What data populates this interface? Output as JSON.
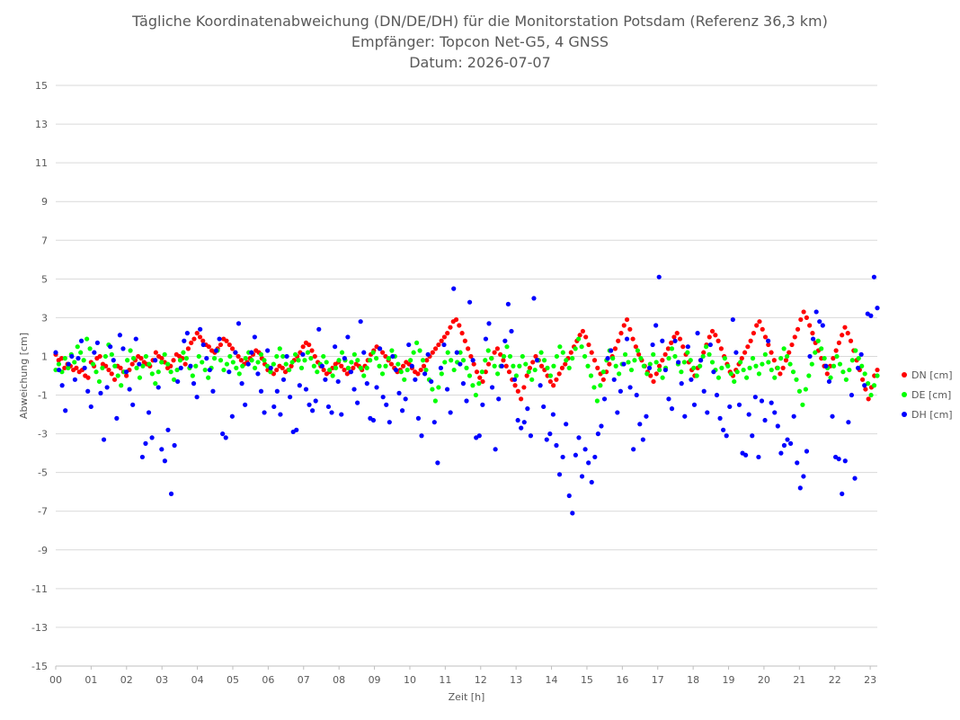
{
  "chart_data": {
    "type": "scatter",
    "title": "Tägliche Koordinatenabweichung (DN/DE/DH) für die Monitorstation Potsdam (Referenz 36,3 km)",
    "subtitle": "Empfänger: Topcon Net-G5, 4 GNSS",
    "date_line": "Datum: 2026-07-07",
    "xlabel": "Zeit [h]",
    "ylabel": "Abweichung [cm]",
    "xlim": [
      0,
      23.2
    ],
    "ylim": [
      -15,
      15
    ],
    "y_ticks": [
      15,
      13,
      11,
      9,
      7,
      5,
      3,
      1,
      -1,
      -3,
      -5,
      -7,
      -9,
      -11,
      -13,
      -15
    ],
    "x_tick_labels": [
      "00",
      "01",
      "02",
      "03",
      "04",
      "05",
      "06",
      "07",
      "08",
      "09",
      "10",
      "11",
      "12",
      "13",
      "14",
      "15",
      "16",
      "17",
      "18",
      "19",
      "20",
      "21",
      "22",
      "23"
    ],
    "grid": "horizontal",
    "legend_position": "right",
    "series": [
      {
        "name": "DN [cm]",
        "color": "#ff0000",
        "values": [
          1.1,
          0.8,
          0.9,
          0.4,
          0.6,
          0.5,
          0.3,
          0.4,
          0.2,
          0.3,
          0.0,
          -0.1,
          0.7,
          0.5,
          0.9,
          1.0,
          0.6,
          0.5,
          0.3,
          0.1,
          -0.2,
          0.5,
          0.4,
          0.2,
          0.0,
          0.3,
          0.6,
          0.8,
          1.0,
          0.9,
          0.7,
          0.6,
          0.5,
          0.8,
          1.2,
          1.0,
          0.9,
          0.7,
          0.4,
          0.5,
          0.8,
          1.1,
          1.0,
          0.9,
          0.6,
          1.4,
          1.7,
          1.9,
          2.2,
          2.0,
          1.8,
          1.6,
          1.5,
          1.3,
          1.2,
          1.4,
          1.6,
          1.9,
          1.8,
          1.6,
          1.4,
          1.2,
          1.0,
          0.8,
          0.6,
          0.7,
          0.9,
          1.1,
          1.3,
          1.2,
          0.9,
          0.6,
          0.3,
          0.2,
          0.1,
          0.3,
          0.5,
          0.4,
          0.2,
          0.3,
          0.5,
          0.8,
          1.0,
          1.2,
          1.5,
          1.7,
          1.6,
          1.3,
          1.0,
          0.7,
          0.5,
          0.3,
          0.1,
          0.2,
          0.4,
          0.6,
          0.7,
          0.5,
          0.3,
          0.1,
          0.2,
          0.4,
          0.6,
          0.5,
          0.3,
          0.5,
          0.8,
          1.1,
          1.3,
          1.5,
          1.4,
          1.2,
          1.0,
          0.8,
          0.6,
          0.4,
          0.2,
          0.3,
          0.5,
          0.7,
          0.6,
          0.4,
          0.2,
          0.1,
          0.3,
          0.5,
          0.8,
          1.0,
          1.2,
          1.4,
          1.6,
          1.8,
          2.0,
          2.2,
          2.5,
          2.8,
          2.9,
          2.6,
          2.2,
          1.8,
          1.4,
          1.0,
          0.6,
          0.2,
          -0.1,
          -0.3,
          0.2,
          0.6,
          0.9,
          1.2,
          1.4,
          1.1,
          0.8,
          0.5,
          0.2,
          -0.2,
          -0.5,
          -0.8,
          -1.2,
          -0.6,
          0.0,
          0.4,
          0.7,
          1.0,
          0.8,
          0.5,
          0.3,
          0.0,
          -0.3,
          -0.5,
          -0.2,
          0.1,
          0.4,
          0.6,
          0.9,
          1.2,
          1.5,
          1.8,
          2.1,
          2.3,
          2.0,
          1.6,
          1.2,
          0.8,
          0.4,
          0.1,
          -0.2,
          0.2,
          0.6,
          1.0,
          1.4,
          1.8,
          2.2,
          2.6,
          2.9,
          2.4,
          1.9,
          1.5,
          1.1,
          0.8,
          0.5,
          0.2,
          0.0,
          -0.3,
          0.1,
          0.5,
          0.8,
          1.1,
          1.4,
          1.7,
          2.0,
          2.2,
          1.9,
          1.5,
          1.1,
          0.7,
          0.3,
          0.0,
          0.4,
          0.8,
          1.2,
          1.6,
          2.0,
          2.3,
          2.1,
          1.8,
          1.4,
          1.0,
          0.6,
          0.2,
          0.0,
          0.3,
          0.6,
          0.9,
          1.2,
          1.5,
          1.8,
          2.2,
          2.6,
          2.8,
          2.4,
          2.0,
          1.6,
          1.2,
          0.8,
          0.4,
          0.1,
          0.4,
          0.8,
          1.2,
          1.6,
          2.0,
          2.4,
          2.9,
          3.3,
          3.0,
          2.6,
          2.2,
          1.7,
          1.3,
          0.9,
          0.5,
          0.1,
          0.5,
          0.9,
          1.3,
          1.7,
          2.1,
          2.5,
          2.2,
          1.8,
          1.3,
          0.8,
          0.3,
          -0.2,
          -0.7,
          -1.2,
          -0.6,
          0.0,
          0.3
        ]
      },
      {
        "name": "DE [cm]",
        "color": "#00ff00",
        "values": [
          0.3,
          0.6,
          0.2,
          0.9,
          0.4,
          1.1,
          0.7,
          1.5,
          1.2,
          0.8,
          1.9,
          1.4,
          0.6,
          0.2,
          -0.3,
          0.4,
          1.0,
          1.6,
          1.1,
          0.5,
          0.0,
          -0.5,
          0.2,
          0.8,
          1.3,
          0.9,
          0.4,
          -0.1,
          0.5,
          1.0,
          0.6,
          0.1,
          -0.4,
          0.2,
          0.7,
          1.1,
          0.6,
          0.2,
          -0.2,
          0.3,
          0.8,
          1.2,
          0.9,
          0.4,
          0.0,
          0.5,
          1.0,
          0.7,
          0.3,
          -0.1,
          0.4,
          0.9,
          1.3,
          0.8,
          0.3,
          0.6,
          1.0,
          0.7,
          0.4,
          0.1,
          0.5,
          0.9,
          1.2,
          0.8,
          0.4,
          0.7,
          1.1,
          0.8,
          0.5,
          0.2,
          0.6,
          1.0,
          1.4,
          1.0,
          0.6,
          0.3,
          0.7,
          1.1,
          0.8,
          0.4,
          0.8,
          1.2,
          0.9,
          0.5,
          0.2,
          0.6,
          1.0,
          0.7,
          0.3,
          0.0,
          0.4,
          0.8,
          1.2,
          0.8,
          0.4,
          0.7,
          1.1,
          0.8,
          0.4,
          0.0,
          0.4,
          0.8,
          1.2,
          0.9,
          0.5,
          0.1,
          0.5,
          0.9,
          1.3,
          1.0,
          0.6,
          0.2,
          -0.2,
          0.3,
          0.8,
          1.2,
          1.7,
          1.3,
          0.8,
          0.3,
          -0.2,
          -0.7,
          -1.3,
          -0.6,
          0.1,
          0.7,
          1.2,
          0.8,
          0.3,
          0.7,
          1.2,
          0.8,
          0.4,
          0.0,
          -0.5,
          -1.0,
          -0.4,
          0.2,
          0.8,
          1.3,
          0.9,
          0.5,
          0.1,
          0.5,
          1.0,
          1.5,
          1.0,
          0.5,
          0.0,
          0.5,
          1.0,
          0.6,
          0.2,
          -0.2,
          0.3,
          0.8,
          1.2,
          0.8,
          0.4,
          0.0,
          0.5,
          1.0,
          1.5,
          1.2,
          0.8,
          0.4,
          0.9,
          1.4,
          1.9,
          1.5,
          1.0,
          0.5,
          0.0,
          -0.6,
          -1.3,
          -0.5,
          0.2,
          0.8,
          1.3,
          0.9,
          0.5,
          0.1,
          0.6,
          1.1,
          0.7,
          0.3,
          0.8,
          1.3,
          0.9,
          0.5,
          0.1,
          0.6,
          1.1,
          0.7,
          0.3,
          -0.1,
          0.4,
          0.9,
          1.4,
          1.0,
          0.6,
          0.2,
          0.7,
          1.2,
          0.8,
          0.4,
          0.0,
          0.5,
          1.0,
          1.5,
          1.1,
          0.7,
          0.3,
          -0.1,
          0.4,
          0.9,
          0.5,
          0.1,
          -0.3,
          0.2,
          0.7,
          0.3,
          -0.1,
          0.4,
          0.9,
          0.5,
          0.1,
          0.6,
          1.1,
          0.7,
          0.3,
          -0.1,
          0.4,
          0.9,
          1.4,
          1.0,
          0.6,
          0.2,
          -0.2,
          -0.8,
          -1.5,
          -0.7,
          0.0,
          0.6,
          1.2,
          1.8,
          1.4,
          0.9,
          0.4,
          -0.1,
          0.5,
          1.0,
          0.6,
          0.2,
          -0.2,
          0.3,
          0.8,
          1.3,
          0.9,
          0.5,
          0.1,
          -0.4,
          -1.0,
          -0.5,
          0.0
        ]
      },
      {
        "name": "DH [cm]",
        "color": "#0000ff",
        "values": [
          1.2,
          0.3,
          -0.5,
          -1.8,
          0.6,
          1.0,
          -0.2,
          0.9,
          1.8,
          0.4,
          -0.8,
          -1.6,
          1.2,
          1.7,
          -0.9,
          -3.3,
          -0.6,
          1.5,
          0.8,
          -2.2,
          2.1,
          1.4,
          0.2,
          -0.7,
          -1.5,
          1.9,
          0.6,
          -4.2,
          -3.5,
          -1.9,
          -3.2,
          0.8,
          -0.6,
          -3.8,
          -4.4,
          -2.8,
          -6.1,
          -3.6,
          -0.3,
          0.4,
          1.8,
          2.2,
          0.5,
          -0.4,
          -1.1,
          2.4,
          1.6,
          0.9,
          0.3,
          -0.8,
          1.3,
          1.9,
          -3.0,
          -3.2,
          0.2,
          -2.1,
          1.2,
          2.7,
          -0.4,
          -1.5,
          0.6,
          1.2,
          2.0,
          0.1,
          -0.8,
          -1.9,
          1.3,
          0.4,
          -1.6,
          -0.8,
          -2.0,
          -0.2,
          1.0,
          -1.1,
          -2.9,
          -2.8,
          -0.5,
          1.1,
          -0.7,
          -1.5,
          -1.8,
          -1.3,
          2.4,
          0.5,
          -0.2,
          -1.6,
          -1.9,
          1.5,
          -0.3,
          -2.0,
          0.9,
          2.0,
          0.2,
          -0.7,
          -1.4,
          2.8,
          1.2,
          -0.4,
          -2.2,
          -2.3,
          -0.6,
          1.4,
          -1.1,
          -1.5,
          -2.4,
          1.0,
          0.3,
          -0.9,
          -1.8,
          -1.2,
          1.6,
          0.5,
          -0.2,
          -2.2,
          -3.1,
          0.1,
          1.1,
          -0.3,
          -2.4,
          -4.5,
          0.4,
          1.6,
          -0.7,
          -1.9,
          4.5,
          1.2,
          0.6,
          -0.4,
          -1.3,
          3.8,
          0.8,
          -3.2,
          -3.1,
          -1.5,
          1.9,
          2.7,
          -0.6,
          -3.8,
          -1.2,
          0.5,
          1.8,
          3.7,
          2.3,
          -0.2,
          -2.3,
          -2.7,
          -2.4,
          -1.7,
          -3.1,
          4.0,
          0.8,
          -0.5,
          -1.6,
          -3.3,
          -3.0,
          -2.0,
          -3.6,
          -5.1,
          -4.2,
          -2.5,
          -6.2,
          -7.1,
          -4.1,
          -3.2,
          -5.2,
          -3.8,
          -4.5,
          -5.5,
          -4.2,
          -3.0,
          -2.6,
          -1.2,
          0.9,
          1.3,
          -0.2,
          -1.9,
          -0.8,
          0.6,
          1.9,
          -0.6,
          -3.8,
          -1.0,
          -2.5,
          -3.3,
          -2.1,
          0.4,
          1.6,
          2.6,
          5.1,
          1.8,
          0.3,
          -1.2,
          -1.7,
          1.8,
          0.7,
          -0.4,
          -2.1,
          1.5,
          -0.2,
          -1.5,
          2.2,
          0.8,
          -0.8,
          -1.9,
          1.6,
          0.2,
          -1.0,
          -2.2,
          -2.8,
          -3.1,
          -1.6,
          2.9,
          1.2,
          -1.5,
          -4.0,
          -4.1,
          -2.0,
          -3.1,
          -1.1,
          -4.2,
          -1.3,
          -2.3,
          1.8,
          -1.4,
          -1.9,
          -2.6,
          -4.0,
          -3.6,
          -3.3,
          -3.5,
          -2.1,
          -4.5,
          -5.8,
          -5.2,
          -3.9,
          1.0,
          1.9,
          3.3,
          2.8,
          2.6,
          0.5,
          -0.3,
          -2.1,
          -4.2,
          -4.3,
          -6.1,
          -4.4,
          -2.4,
          -1.0,
          -5.3,
          0.4,
          1.1,
          -0.5,
          3.2,
          3.1,
          5.1,
          3.5
        ]
      }
    ]
  }
}
